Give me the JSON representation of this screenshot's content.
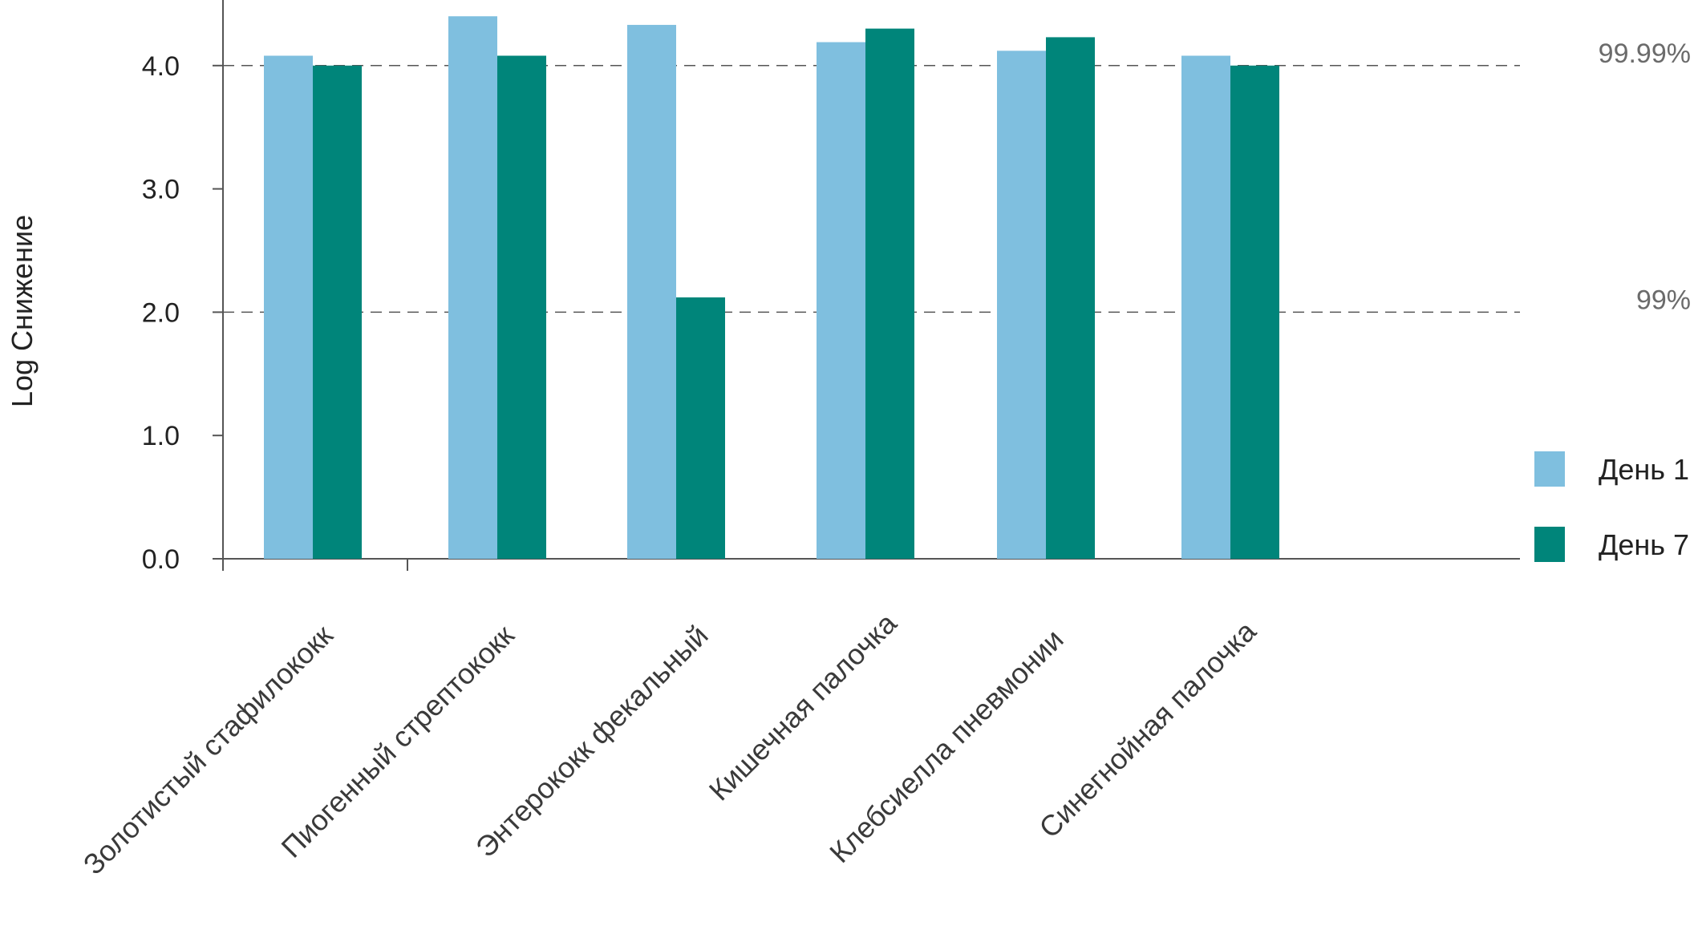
{
  "chart_data": {
    "type": "bar",
    "title": "",
    "xlabel": "",
    "ylabel": "Log Снижение",
    "ylim": [
      0,
      4.5
    ],
    "yticks": [
      "0.0",
      "1.0",
      "2.0",
      "3.0",
      "4.0"
    ],
    "categories": [
      "Золотистый стафилококк",
      "Пиогенный стрептококк",
      "Энтерококк фекальный",
      "Кишечная палочка",
      "Клебсиелла пневмонии",
      "Синегнойная палочка"
    ],
    "series": [
      {
        "name": "День 1",
        "color": "#7fbfdf",
        "values": [
          4.08,
          4.4,
          4.33,
          4.19,
          4.12,
          4.08
        ]
      },
      {
        "name": "День 7",
        "color": "#00857a",
        "values": [
          4.0,
          4.08,
          2.12,
          4.3,
          4.23,
          4.0
        ]
      }
    ],
    "reference_lines": [
      {
        "value": 4.0,
        "label": "99.99%"
      },
      {
        "value": 2.0,
        "label": "99%"
      }
    ],
    "grid": false,
    "legend": "right"
  }
}
